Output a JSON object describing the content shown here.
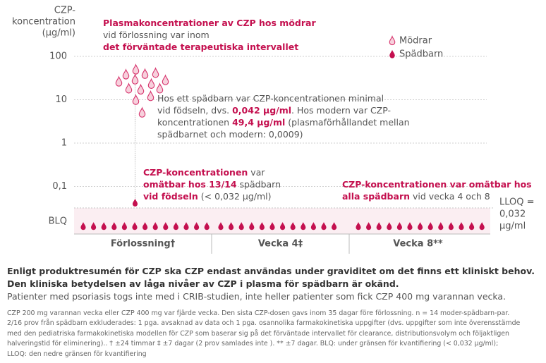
{
  "chart_data": {
    "type": "scatter",
    "y_label_lines": [
      "CZP-",
      "koncentration",
      "(µg/ml)"
    ],
    "log_y": true,
    "ylim": [
      0.032,
      100
    ],
    "yticks": [
      {
        "value": 0.1,
        "label": "0,1"
      },
      1,
      10,
      100
    ],
    "grid": true,
    "blq_label": "BLQ",
    "lloq": {
      "value": 0.032,
      "label_lines": [
        "LLOQ =",
        "0,032",
        "µg/ml"
      ]
    },
    "categories": [
      "Förlossning†",
      "Vecka 4‡",
      "Vecka 8**"
    ],
    "series": [
      {
        "name": "Mödrar",
        "color": "#d6336c",
        "category": 0,
        "values": [
          49.4,
          38,
          39,
          41,
          26,
          29,
          28,
          23,
          18,
          17,
          18,
          12,
          9.8,
          5
        ]
      },
      {
        "name": "Spädbarn",
        "color": "#c4104f",
        "category": 0,
        "values": [
          0.042
        ],
        "blq_counts": [
          13,
          12,
          13
        ]
      }
    ],
    "annotations": [
      {
        "lines": [
          [
            {
              "text": "Plasmakoncentrationer av CZP hos mödrar",
              "emph": true
            }
          ],
          [
            {
              "text": "vid förlossning var inom",
              "emph": false
            }
          ],
          [
            {
              "text": "det förväntade terapeutiska intervallet",
              "emph": true
            }
          ]
        ]
      },
      {
        "lines": [
          [
            {
              "text": "Hos ett spädbarn var CZP-koncentrationen minimal",
              "emph": false
            }
          ],
          [
            {
              "text": "vid födseln, dvs. ",
              "emph": false
            },
            {
              "text": "0,042 µg/ml",
              "emph": true
            },
            {
              "text": ". Hos modern var CZP-",
              "emph": false
            }
          ],
          [
            {
              "text": "koncentrationen ",
              "emph": false
            },
            {
              "text": "49,4 µg/ml",
              "emph": true
            },
            {
              "text": " (plasmaförhållandet mellan",
              "emph": false
            }
          ],
          [
            {
              "text": "spädbarnet och modern: 0,0009)",
              "emph": false
            }
          ]
        ]
      },
      {
        "lines": [
          [
            {
              "text": "CZP-koncentrationen",
              "emph": true
            },
            {
              "text": " var",
              "emph": false
            }
          ],
          [
            {
              "text": "omätbar hos 13/14",
              "emph": true
            },
            {
              "text": " spädbarn",
              "emph": false
            }
          ],
          [
            {
              "text": "vid födseln",
              "emph": true
            },
            {
              "text": " (< 0,032 µg/ml)",
              "emph": false
            }
          ]
        ]
      },
      {
        "lines": [
          [
            {
              "text": "CZP-koncentrationen var omätbar hos",
              "emph": true
            }
          ],
          [
            {
              "text": "alla spädbarn",
              "emph": true
            },
            {
              "text": " vid vecka 4 och 8",
              "emph": false
            }
          ]
        ]
      }
    ]
  },
  "notes": {
    "bold_lines": [
      "Enligt produktresumén för CZP ska CZP endast användas under graviditet om det finns ett kliniskt behov.",
      "Den kliniska betydelsen av låga nivåer av CZP i plasma för spädbarn är okänd."
    ],
    "plain": "Patienter med psoriasis togs inte med i CRIB-studien, inte heller patienter som fick CZP 400 mg varannan vecka.",
    "footnotes": [
      "CZP 200 mg varannan vecka eller CZP 400 mg var fjärde vecka. Den sista CZP-dosen gavs inom 35 dagar före förlossning. n = 14 moder-spädbarn-par.",
      "2/16 prov från spädbarn exkluderades: 1 pga. avsaknad av data och 1 pga. osannolika farmakokinetiska uppgifter (dvs. uppgifter som inte överensstämde",
      "med den pediatriska farmakokinetiska modellen för CZP som baserar sig på det förväntade intervallet för clearance, distributionsvolym och följaktligen",
      "halveringstid för eliminering).. † ±24 timmar ‡ ±7 dagar (2 prov samlades inte ). ** ±7 dagar. BLQ: under gränsen för kvantifiering (< 0,032 µg/ml);",
      "LLOQ: den nedre gränsen för kvantifiering"
    ]
  }
}
